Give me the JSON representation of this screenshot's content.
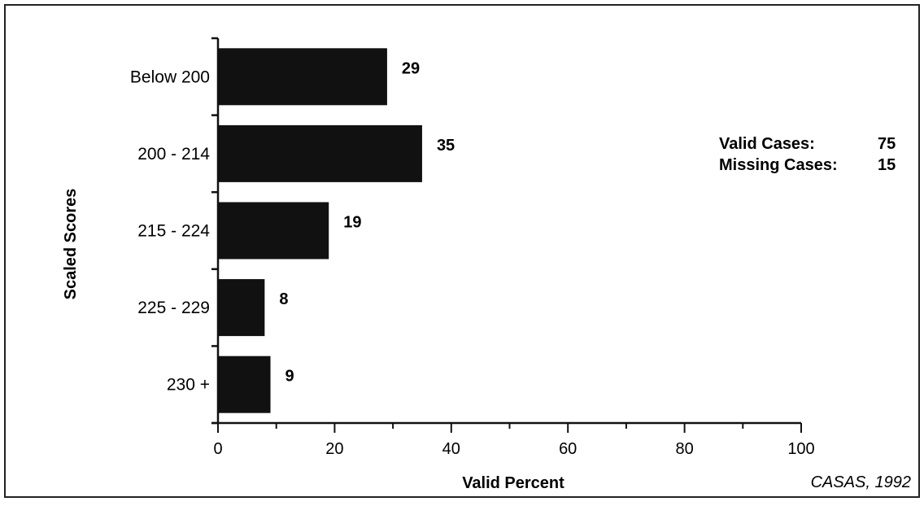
{
  "chart_data": {
    "type": "bar",
    "orientation": "horizontal",
    "categories": [
      "Below 200",
      "200 - 214",
      "215 - 224",
      "225 - 229",
      "230 +"
    ],
    "values": [
      29,
      35,
      19,
      8,
      9
    ],
    "xlabel": "Valid Percent",
    "ylabel": "Scaled Scores",
    "xlim": [
      0,
      100
    ],
    "xticks": [
      0,
      20,
      40,
      60,
      80,
      100
    ],
    "grid": false
  },
  "stats": {
    "valid_label": "Valid Cases:",
    "valid_value": "75",
    "missing_label": "Missing Cases:",
    "missing_value": "15"
  },
  "source": "CASAS, 1992",
  "colors": {
    "bar": "#111111",
    "axis": "#111111",
    "frame": "#222222"
  }
}
